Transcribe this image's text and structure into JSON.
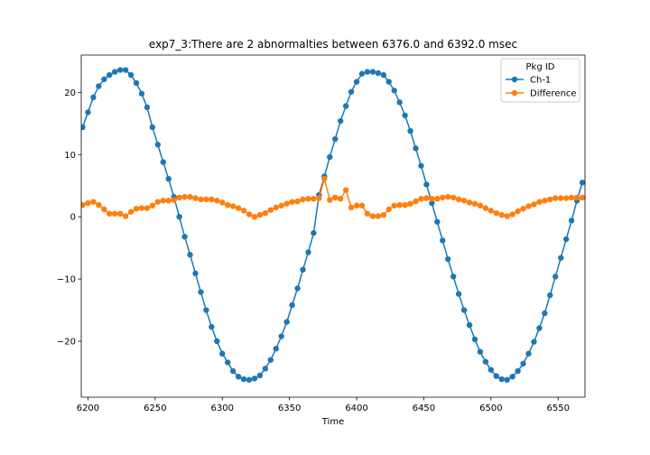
{
  "chart_data": {
    "type": "line",
    "title": "exp7_3:There are 2 abnormalties between 6376.0 and 6392.0 msec",
    "xlabel": "Time",
    "ylabel": "",
    "xlim": [
      6195,
      6570
    ],
    "ylim": [
      -29,
      26
    ],
    "x_ticks": [
      6200,
      6250,
      6300,
      6350,
      6400,
      6450,
      6500,
      6550
    ],
    "y_ticks": [
      -20,
      -10,
      0,
      10,
      20
    ],
    "x_tick_labels": [
      "6200",
      "6250",
      "6300",
      "6350",
      "6400",
      "6450",
      "6500",
      "6550"
    ],
    "y_tick_labels": [
      "−20",
      "−10",
      "0",
      "10",
      "20"
    ],
    "grid": false,
    "legend": {
      "title": "Pkg ID",
      "placement": "top-right"
    },
    "series": [
      {
        "name": "Ch-1",
        "color": "#1f77b4",
        "marker": "circle",
        "x": [
          6196,
          6200,
          6204,
          6208,
          6212,
          6216,
          6220,
          6224,
          6228,
          6232,
          6236,
          6240,
          6244,
          6248,
          6252,
          6256,
          6260,
          6264,
          6268,
          6272,
          6276,
          6280,
          6284,
          6288,
          6292,
          6296,
          6300,
          6304,
          6308,
          6312,
          6316,
          6320,
          6324,
          6328,
          6332,
          6336,
          6340,
          6344,
          6348,
          6352,
          6356,
          6360,
          6364,
          6368,
          6372,
          6376,
          6380,
          6384,
          6388,
          6392,
          6396,
          6400,
          6404,
          6408,
          6412,
          6416,
          6420,
          6424,
          6428,
          6432,
          6436,
          6440,
          6444,
          6448,
          6452,
          6456,
          6460,
          6464,
          6468,
          6472,
          6476,
          6480,
          6484,
          6488,
          6492,
          6496,
          6500,
          6504,
          6508,
          6512,
          6516,
          6520,
          6524,
          6528,
          6532,
          6536,
          6540,
          6544,
          6548,
          6552,
          6556,
          6560,
          6564,
          6568
        ],
        "values": [
          14.4,
          16.8,
          19.2,
          21.0,
          22.1,
          22.8,
          23.3,
          23.6,
          23.6,
          22.8,
          21.5,
          19.8,
          17.6,
          14.4,
          11.6,
          8.8,
          6.1,
          3.2,
          0.0,
          -3.2,
          -6.1,
          -9.1,
          -12.1,
          -15.0,
          -17.7,
          -20.0,
          -22.0,
          -23.4,
          -24.8,
          -25.7,
          -26.1,
          -26.2,
          -26.0,
          -25.5,
          -24.4,
          -23.0,
          -21.2,
          -19.2,
          -16.9,
          -14.2,
          -11.5,
          -8.5,
          -5.7,
          -2.6,
          3.5,
          6.5,
          9.6,
          12.5,
          15.4,
          17.8,
          20.1,
          21.7,
          23.0,
          23.3,
          23.3,
          23.1,
          22.8,
          21.7,
          20.3,
          18.4,
          16.3,
          13.8,
          11.0,
          8.2,
          5.2,
          2.2,
          -0.8,
          -3.8,
          -6.8,
          -9.6,
          -12.4,
          -15.0,
          -17.4,
          -19.7,
          -21.7,
          -23.3,
          -24.6,
          -25.6,
          -26.1,
          -26.2,
          -25.7,
          -24.8,
          -23.6,
          -22.0,
          -20.1,
          -17.9,
          -15.5,
          -12.6,
          -9.6,
          -6.6,
          -3.6,
          -0.6,
          2.6,
          5.5
        ]
      },
      {
        "name": "Difference",
        "color": "#ff7f0e",
        "marker": "circle",
        "x": [
          6196,
          6200,
          6204,
          6208,
          6212,
          6216,
          6220,
          6224,
          6228,
          6232,
          6236,
          6240,
          6244,
          6248,
          6252,
          6256,
          6260,
          6264,
          6268,
          6272,
          6276,
          6280,
          6284,
          6288,
          6292,
          6296,
          6300,
          6304,
          6308,
          6312,
          6316,
          6320,
          6324,
          6328,
          6332,
          6336,
          6340,
          6344,
          6348,
          6352,
          6356,
          6360,
          6364,
          6368,
          6372,
          6376,
          6380,
          6384,
          6388,
          6392,
          6396,
          6400,
          6404,
          6408,
          6412,
          6416,
          6420,
          6424,
          6428,
          6432,
          6436,
          6440,
          6444,
          6448,
          6452,
          6456,
          6460,
          6464,
          6468,
          6472,
          6476,
          6480,
          6484,
          6488,
          6492,
          6496,
          6500,
          6504,
          6508,
          6512,
          6516,
          6520,
          6524,
          6528,
          6532,
          6536,
          6540,
          6544,
          6548,
          6552,
          6556,
          6560,
          6564,
          6568
        ],
        "values": [
          1.9,
          2.2,
          2.4,
          1.9,
          1.2,
          0.5,
          0.5,
          0.5,
          0.1,
          0.8,
          1.3,
          1.4,
          1.4,
          1.8,
          2.4,
          2.6,
          2.6,
          2.7,
          3.1,
          3.2,
          3.2,
          3.0,
          2.8,
          2.8,
          2.8,
          2.6,
          2.3,
          1.9,
          1.7,
          1.4,
          1.0,
          0.4,
          0.0,
          0.3,
          0.6,
          1.1,
          1.5,
          1.8,
          2.1,
          2.4,
          2.5,
          2.8,
          2.9,
          2.9,
          3.0,
          6.1,
          2.7,
          3.1,
          2.9,
          4.3,
          1.5,
          1.8,
          1.8,
          0.5,
          0.1,
          0.1,
          0.3,
          1.2,
          1.8,
          1.9,
          1.9,
          2.1,
          2.5,
          2.9,
          3.0,
          2.9,
          2.9,
          3.1,
          3.2,
          3.1,
          2.8,
          2.6,
          2.3,
          2.1,
          1.8,
          1.4,
          1.0,
          0.6,
          0.3,
          0.1,
          0.4,
          0.9,
          1.3,
          1.7,
          2.0,
          2.4,
          2.6,
          2.8,
          3.0,
          3.0,
          3.0,
          3.1,
          3.1,
          3.1
        ]
      }
    ]
  }
}
